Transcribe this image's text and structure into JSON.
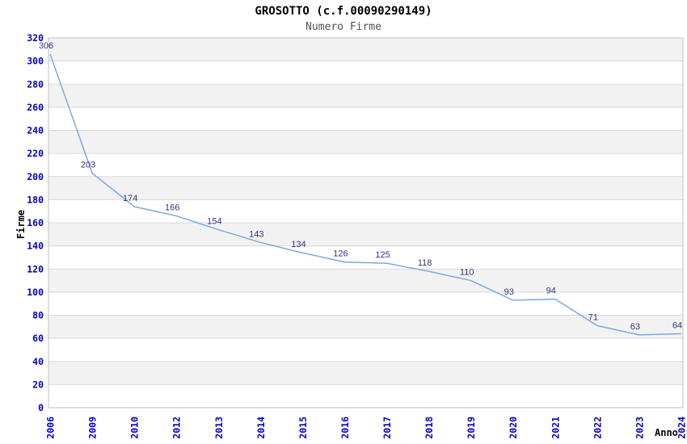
{
  "chart_data": {
    "type": "line",
    "title": "GROSOTTO (c.f.00090290149)",
    "subtitle": "Numero Firme",
    "xlabel": "Anno",
    "ylabel": "Firme",
    "categories": [
      "2006",
      "2009",
      "2010",
      "2012",
      "2013",
      "2014",
      "2015",
      "2016",
      "2017",
      "2018",
      "2019",
      "2020",
      "2021",
      "2022",
      "2023",
      "2024"
    ],
    "values": [
      306,
      203,
      174,
      166,
      154,
      143,
      134,
      126,
      125,
      118,
      110,
      93,
      94,
      71,
      63,
      64
    ],
    "ylim": [
      0,
      320
    ],
    "ytick_step": 20,
    "grid": "horizontal-bands",
    "legend_position": "none",
    "colors": {
      "line": "#7aaae0",
      "data_label": "#333380",
      "tick_label": "#0000cc",
      "band_gray": "#f2f2f2",
      "band_white": "#ffffff",
      "gridline": "#d9d9d9",
      "plot_border": "#c0c0c0",
      "title": "#000000",
      "subtitle": "#515151",
      "axis_label": "#000000",
      "background": "#ffffff"
    }
  }
}
